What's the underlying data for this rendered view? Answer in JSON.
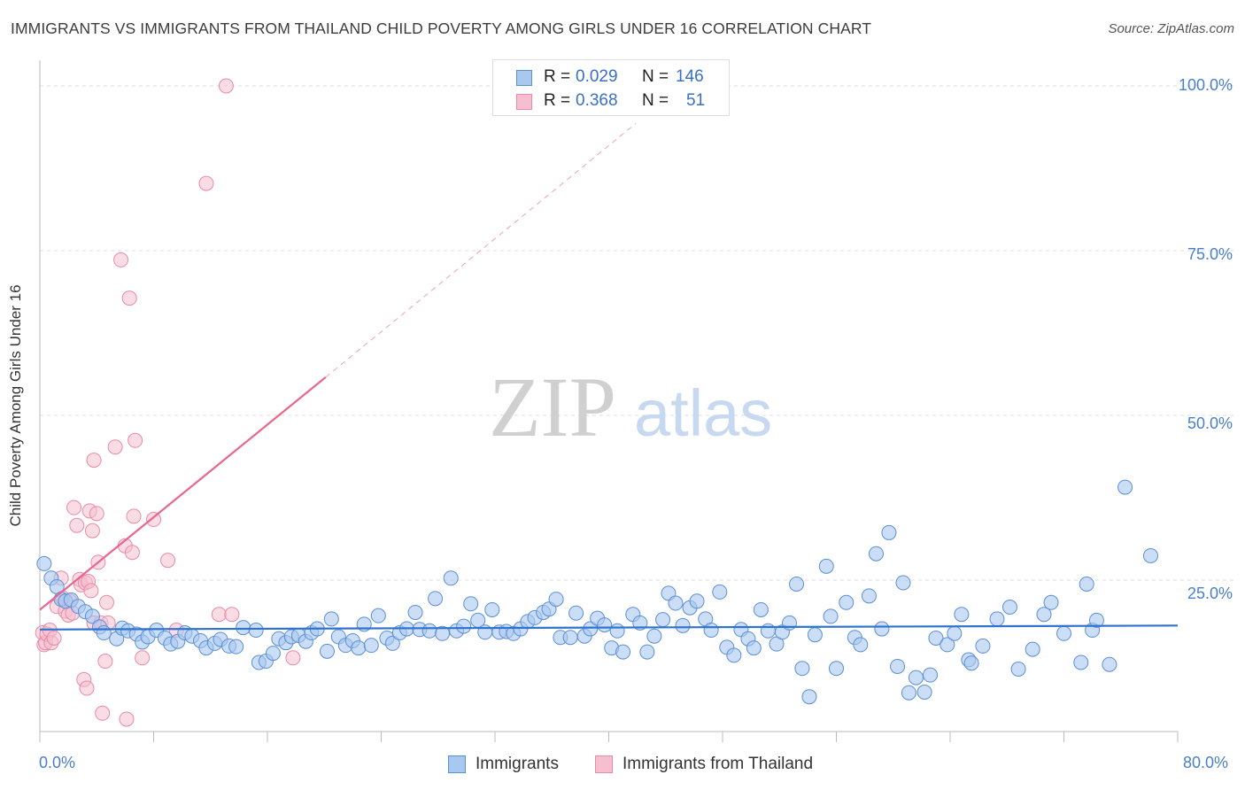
{
  "title": "IMMIGRANTS VS IMMIGRANTS FROM THAILAND CHILD POVERTY AMONG GIRLS UNDER 16 CORRELATION CHART",
  "source": "Source: ZipAtlas.com",
  "watermark": {
    "part1": "ZIP",
    "part2": "atlas"
  },
  "colors": {
    "blue_fill": "#a8c8f0",
    "blue_stroke": "#5b8fd6",
    "blue_line": "#2e73cf",
    "pink_fill": "#f6bfd0",
    "pink_stroke": "#e98aa8",
    "pink_line": "#e8678f",
    "tick_label": "#4a7fcb",
    "grid": "#dddddd"
  },
  "legend": {
    "rows": [
      {
        "r_label": "R =",
        "r_value": "0.029",
        "n_label": "N =",
        "n_value": "146"
      },
      {
        "r_label": "R =",
        "r_value": "0.368",
        "n_label": "N =",
        "n_value": "51"
      }
    ]
  },
  "chart_data": {
    "type": "scatter",
    "title": "IMMIGRANTS VS IMMIGRANTS FROM THAILAND CHILD POVERTY AMONG GIRLS UNDER 16 CORRELATION CHART",
    "xlabel": "",
    "ylabel": "Child Poverty Among Girls Under 16",
    "xlim": [
      0,
      80
    ],
    "ylim": [
      0,
      100
    ],
    "x_tick_labels": [
      "0.0%",
      "80.0%"
    ],
    "y_tick_labels": [
      "25.0%",
      "50.0%",
      "75.0%",
      "100.0%"
    ],
    "y_tick_values": [
      25,
      50,
      75,
      100
    ],
    "grid": true,
    "legend_position": "top-center",
    "series": [
      {
        "name": "Immigrants",
        "color": "#a8c8f0",
        "trend": {
          "x0": 0,
          "y0": 17.5,
          "x1": 80,
          "y1": 18.1
        },
        "points": [
          [
            0.3,
            27.5
          ],
          [
            0.8,
            25.3
          ],
          [
            1.2,
            24.0
          ],
          [
            1.5,
            22.1
          ],
          [
            1.8,
            21.8
          ],
          [
            2.2,
            22.0
          ],
          [
            2.7,
            21.0
          ],
          [
            3.2,
            20.2
          ],
          [
            3.7,
            19.5
          ],
          [
            4.2,
            17.9
          ],
          [
            4.5,
            17.0
          ],
          [
            5.4,
            16.1
          ],
          [
            5.8,
            17.7
          ],
          [
            6.2,
            17.3
          ],
          [
            6.8,
            16.8
          ],
          [
            7.2,
            15.6
          ],
          [
            7.6,
            16.4
          ],
          [
            8.2,
            17.4
          ],
          [
            8.8,
            16.2
          ],
          [
            9.2,
            15.3
          ],
          [
            9.7,
            15.7
          ],
          [
            10.2,
            17.0
          ],
          [
            10.7,
            16.5
          ],
          [
            11.3,
            15.8
          ],
          [
            11.7,
            14.7
          ],
          [
            12.3,
            15.4
          ],
          [
            12.7,
            16.0
          ],
          [
            13.3,
            15.0
          ],
          [
            13.8,
            14.9
          ],
          [
            14.3,
            17.8
          ],
          [
            15.2,
            17.4
          ],
          [
            15.4,
            12.5
          ],
          [
            15.9,
            12.7
          ],
          [
            16.4,
            13.9
          ],
          [
            16.8,
            16.1
          ],
          [
            17.3,
            15.5
          ],
          [
            17.7,
            16.4
          ],
          [
            18.2,
            16.6
          ],
          [
            18.7,
            15.7
          ],
          [
            19.1,
            17.0
          ],
          [
            19.5,
            17.6
          ],
          [
            20.2,
            14.2
          ],
          [
            20.5,
            19.1
          ],
          [
            21.0,
            16.4
          ],
          [
            21.5,
            15.1
          ],
          [
            22.0,
            15.8
          ],
          [
            22.4,
            14.7
          ],
          [
            22.8,
            18.3
          ],
          [
            23.3,
            15.1
          ],
          [
            23.8,
            19.6
          ],
          [
            24.4,
            16.2
          ],
          [
            24.8,
            15.4
          ],
          [
            25.3,
            17.0
          ],
          [
            25.8,
            17.6
          ],
          [
            26.4,
            20.1
          ],
          [
            26.7,
            17.5
          ],
          [
            27.4,
            17.3
          ],
          [
            27.8,
            22.2
          ],
          [
            28.3,
            16.9
          ],
          [
            28.9,
            25.3
          ],
          [
            29.3,
            17.3
          ],
          [
            29.8,
            18.0
          ],
          [
            30.3,
            21.4
          ],
          [
            30.8,
            18.9
          ],
          [
            31.3,
            17.1
          ],
          [
            31.8,
            20.5
          ],
          [
            32.3,
            17.1
          ],
          [
            32.8,
            17.2
          ],
          [
            33.3,
            16.9
          ],
          [
            33.8,
            17.6
          ],
          [
            34.3,
            18.7
          ],
          [
            34.8,
            19.3
          ],
          [
            35.4,
            20.1
          ],
          [
            35.8,
            20.6
          ],
          [
            36.3,
            22.1
          ],
          [
            36.6,
            16.3
          ],
          [
            37.3,
            16.3
          ],
          [
            37.7,
            20.0
          ],
          [
            38.3,
            16.5
          ],
          [
            38.7,
            17.6
          ],
          [
            39.2,
            19.2
          ],
          [
            39.7,
            18.2
          ],
          [
            40.2,
            14.7
          ],
          [
            40.6,
            17.3
          ],
          [
            41.0,
            14.1
          ],
          [
            41.7,
            19.8
          ],
          [
            42.2,
            18.5
          ],
          [
            42.7,
            14.1
          ],
          [
            43.2,
            16.5
          ],
          [
            43.8,
            19.0
          ],
          [
            44.2,
            23.0
          ],
          [
            44.7,
            21.5
          ],
          [
            45.2,
            18.1
          ],
          [
            45.7,
            20.8
          ],
          [
            46.2,
            21.8
          ],
          [
            46.8,
            19.1
          ],
          [
            47.2,
            17.4
          ],
          [
            47.8,
            23.2
          ],
          [
            48.3,
            14.8
          ],
          [
            48.8,
            13.6
          ],
          [
            49.3,
            17.5
          ],
          [
            49.8,
            16.1
          ],
          [
            50.2,
            14.7
          ],
          [
            50.7,
            20.5
          ],
          [
            51.2,
            17.3
          ],
          [
            51.8,
            15.3
          ],
          [
            52.2,
            17.1
          ],
          [
            52.7,
            18.5
          ],
          [
            53.2,
            24.4
          ],
          [
            53.6,
            11.6
          ],
          [
            54.1,
            7.3
          ],
          [
            54.5,
            16.7
          ],
          [
            55.3,
            27.1
          ],
          [
            55.6,
            19.5
          ],
          [
            56.0,
            11.6
          ],
          [
            56.7,
            21.6
          ],
          [
            57.3,
            16.3
          ],
          [
            57.7,
            15.2
          ],
          [
            58.3,
            22.6
          ],
          [
            58.8,
            29.0
          ],
          [
            59.2,
            17.6
          ],
          [
            59.7,
            32.2
          ],
          [
            60.3,
            11.9
          ],
          [
            60.7,
            24.6
          ],
          [
            61.1,
            7.9
          ],
          [
            61.6,
            10.2
          ],
          [
            62.2,
            8.0
          ],
          [
            62.6,
            10.6
          ],
          [
            63.0,
            16.2
          ],
          [
            63.8,
            15.2
          ],
          [
            64.3,
            16.9
          ],
          [
            64.8,
            19.8
          ],
          [
            65.3,
            12.9
          ],
          [
            65.5,
            12.4
          ],
          [
            66.3,
            15.0
          ],
          [
            67.3,
            19.1
          ],
          [
            68.2,
            20.9
          ],
          [
            68.8,
            11.5
          ],
          [
            69.8,
            14.5
          ],
          [
            70.6,
            19.8
          ],
          [
            71.1,
            21.6
          ],
          [
            72.0,
            16.9
          ],
          [
            73.2,
            12.5
          ],
          [
            73.6,
            24.4
          ],
          [
            74.0,
            17.4
          ],
          [
            74.3,
            18.9
          ],
          [
            75.2,
            12.2
          ],
          [
            76.3,
            39.1
          ],
          [
            78.1,
            28.7
          ]
        ]
      },
      {
        "name": "Immigrants from Thailand",
        "color": "#f6bfd0",
        "trend": {
          "x0": 0,
          "y0": 20.5,
          "x1": 20.1,
          "y1": 55.8,
          "dashed_to": {
            "x": 41.9,
            "y": 94.3
          }
        },
        "points": [
          [
            0.2,
            17.0
          ],
          [
            0.3,
            15.2
          ],
          [
            0.4,
            15.5
          ],
          [
            0.5,
            16.8
          ],
          [
            0.7,
            17.4
          ],
          [
            0.8,
            15.5
          ],
          [
            1.0,
            16.2
          ],
          [
            1.2,
            21.0
          ],
          [
            1.5,
            25.3
          ],
          [
            1.6,
            22.3
          ],
          [
            1.8,
            20.3
          ],
          [
            2.0,
            19.7
          ],
          [
            2.1,
            21.8
          ],
          [
            2.3,
            20.0
          ],
          [
            2.4,
            36.0
          ],
          [
            2.6,
            33.3
          ],
          [
            2.8,
            25.1
          ],
          [
            2.9,
            24.3
          ],
          [
            3.1,
            9.9
          ],
          [
            3.2,
            24.6
          ],
          [
            3.3,
            8.6
          ],
          [
            3.4,
            24.8
          ],
          [
            3.5,
            35.5
          ],
          [
            3.6,
            23.4
          ],
          [
            3.7,
            32.5
          ],
          [
            3.8,
            18.5
          ],
          [
            3.8,
            43.2
          ],
          [
            4.0,
            35.1
          ],
          [
            4.1,
            27.7
          ],
          [
            4.3,
            18.5
          ],
          [
            4.4,
            4.8
          ],
          [
            4.6,
            12.7
          ],
          [
            4.7,
            21.6
          ],
          [
            4.8,
            18.5
          ],
          [
            5.3,
            45.2
          ],
          [
            5.7,
            73.6
          ],
          [
            6.0,
            30.2
          ],
          [
            6.1,
            3.9
          ],
          [
            6.3,
            67.8
          ],
          [
            6.5,
            29.2
          ],
          [
            6.6,
            34.7
          ],
          [
            6.7,
            46.2
          ],
          [
            7.2,
            13.2
          ],
          [
            8.0,
            34.2
          ],
          [
            9.6,
            17.4
          ],
          [
            11.7,
            85.2
          ],
          [
            12.6,
            19.8
          ],
          [
            13.1,
            100.0
          ],
          [
            13.5,
            19.8
          ],
          [
            17.8,
            13.2
          ],
          [
            9.0,
            28.0
          ]
        ]
      }
    ]
  },
  "axis": {
    "ylabel": "Child Poverty Among Girls Under 16",
    "y_ticks": [
      "25.0%",
      "50.0%",
      "75.0%",
      "100.0%"
    ],
    "x_min_label": "0.0%",
    "x_max_label": "80.0%"
  },
  "bottom_legend": {
    "series1": "Immigrants",
    "series2": "Immigrants from Thailand"
  }
}
